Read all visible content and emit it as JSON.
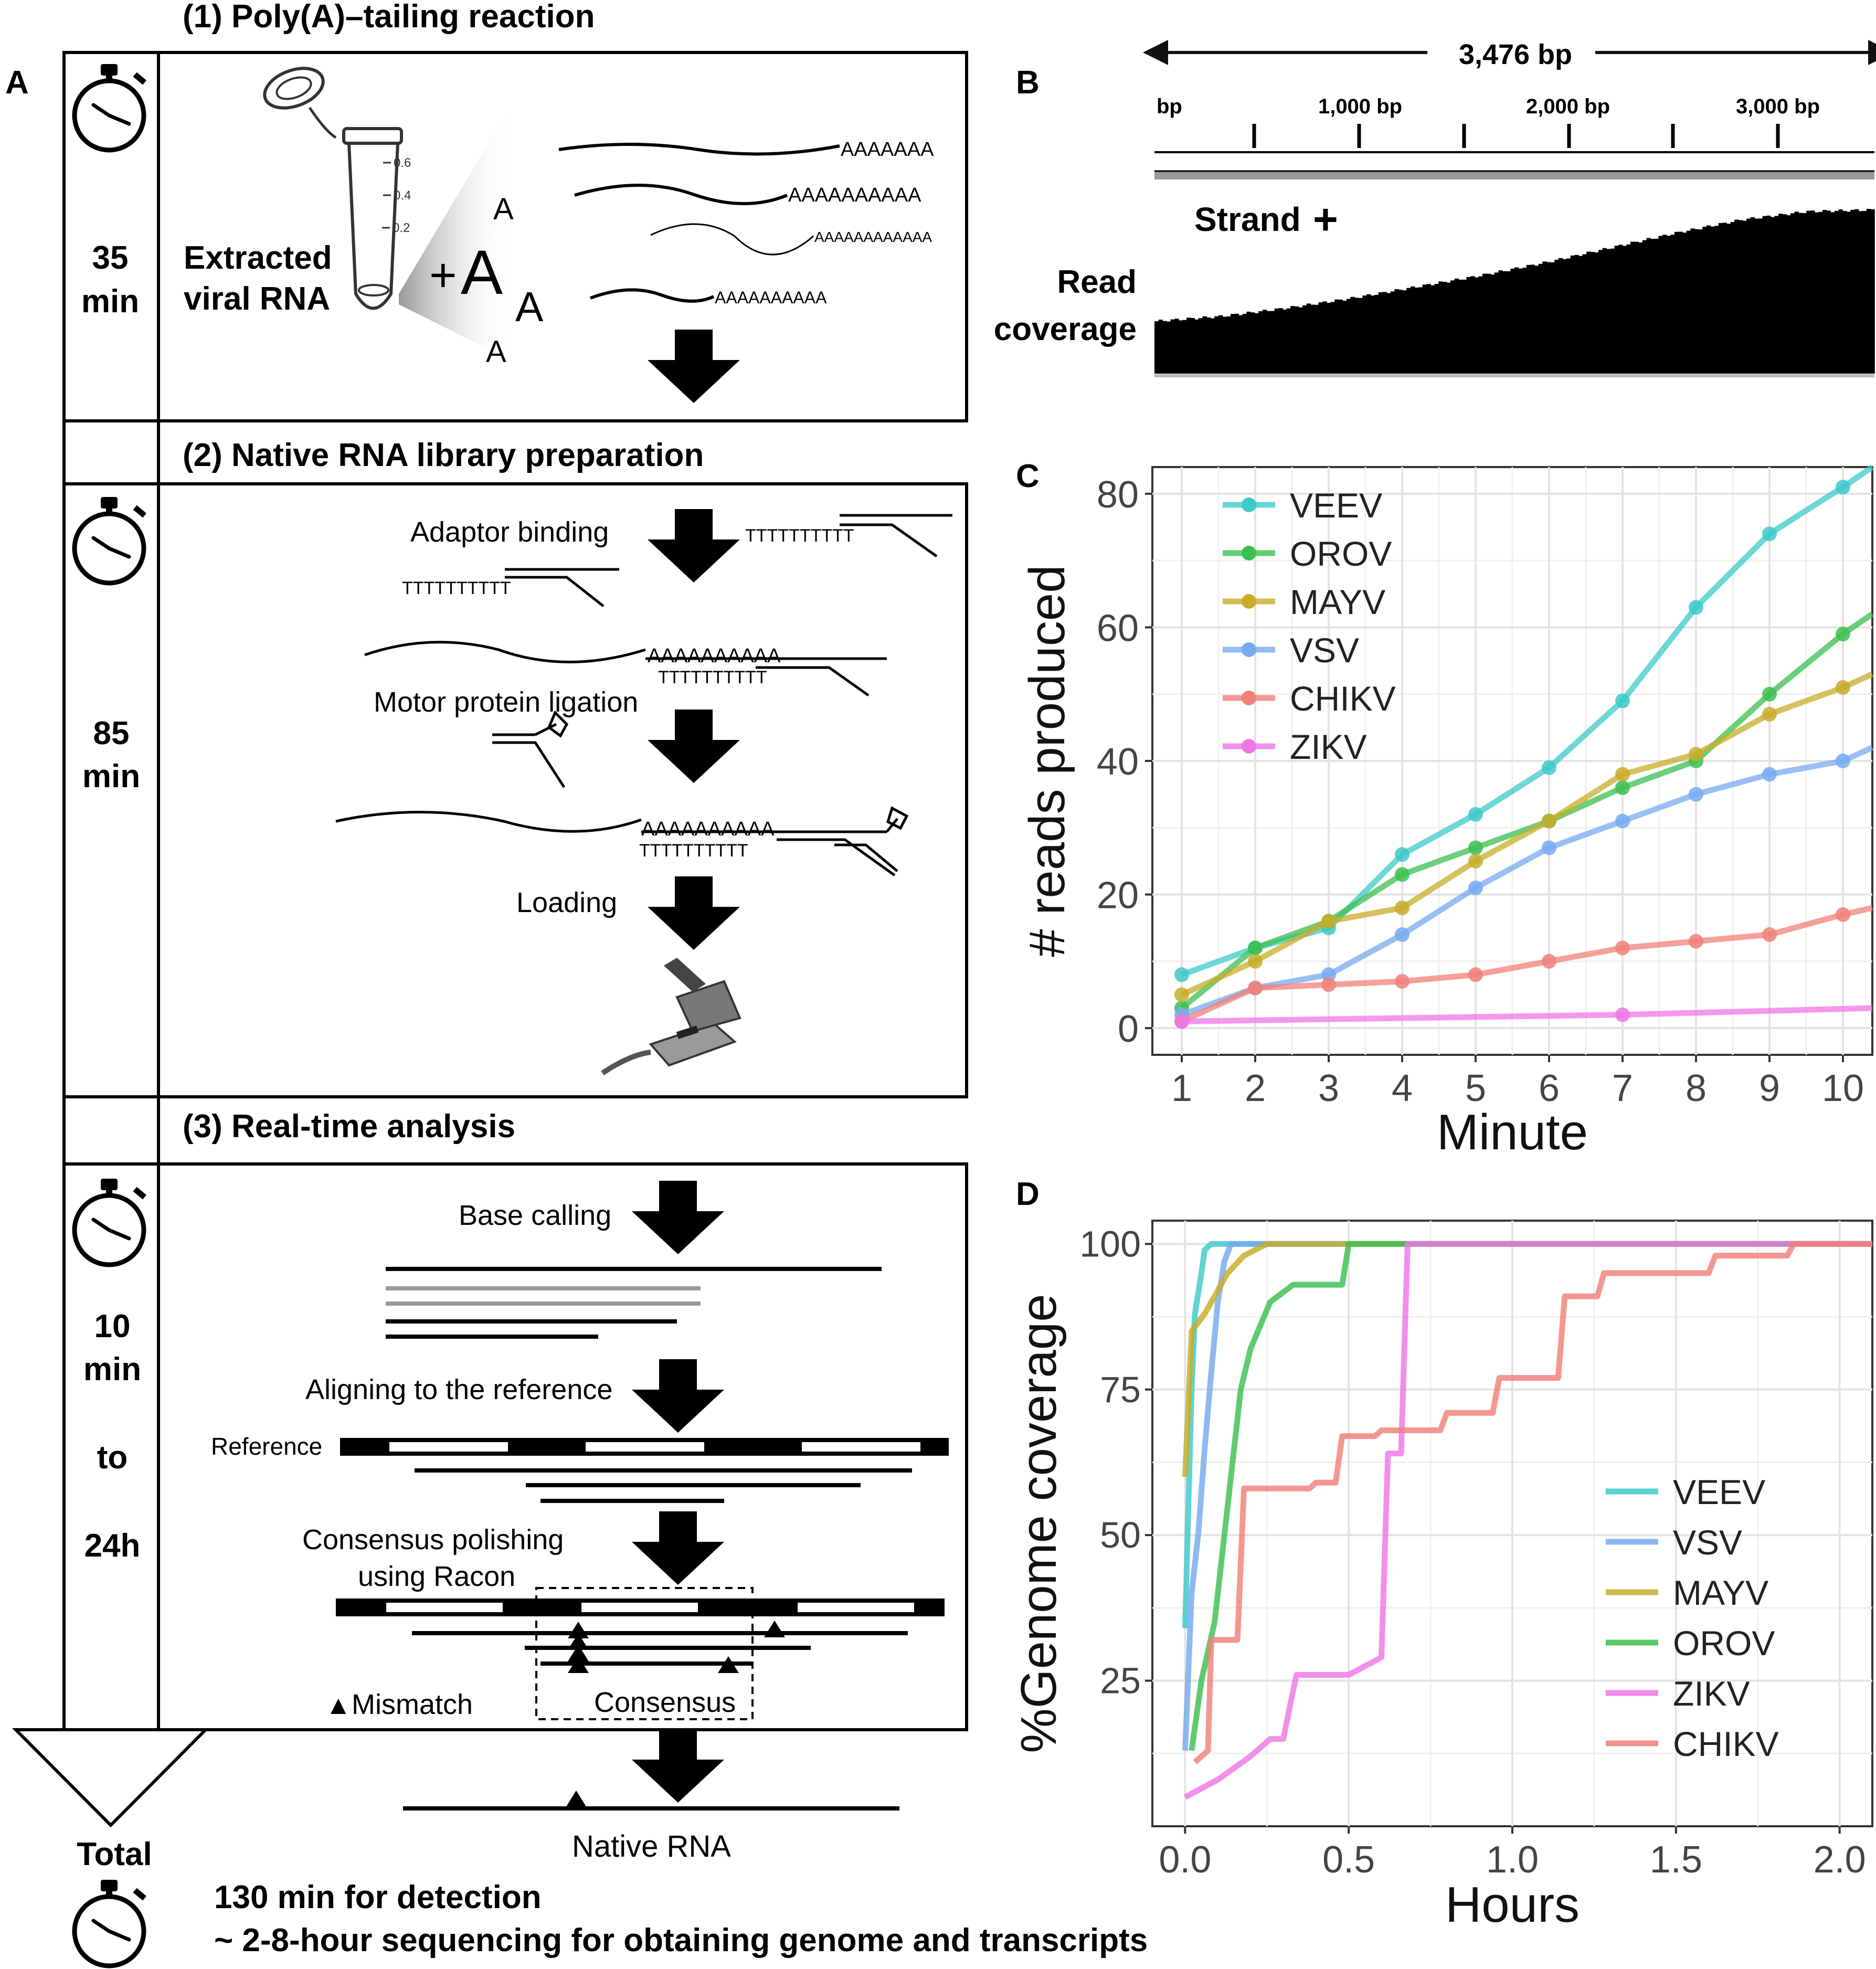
{
  "panel_a": {
    "label": "A",
    "step1": {
      "title": "(1) Poly(A)–tailing reaction",
      "time_value": "35",
      "time_unit": "min",
      "tube_label_line1": "Extracted",
      "tube_label_line2": "viral RNA",
      "plus": "+",
      "a_letter": "A",
      "tube_marks": [
        "0.6",
        "0.4",
        "0.2"
      ],
      "polya_tails": [
        "AAAAAAA",
        "AAAAAAAAAA",
        "AAAAAAAAAAAA",
        "AAAAAAAAAA"
      ]
    },
    "step2": {
      "title": "(2) Native RNA library preparation",
      "time_value": "85",
      "time_unit": "min",
      "adaptor_binding": "Adaptor binding",
      "motor_ligation": "Motor protein ligation",
      "loading": "Loading",
      "adaptor_t": "TTTTTTTTTT",
      "polya": "AAAAAAAAAA"
    },
    "step3": {
      "title": "(3) Real-time analysis",
      "time_value": "10",
      "time_unit": "min",
      "time_to": "to",
      "time_end": "24h",
      "base_calling": "Base calling",
      "aligning": "Aligning to the reference",
      "reference": "Reference",
      "polishing_line1": "Consensus polishing",
      "polishing_line2": "using Racon",
      "mismatch_marker": "▲",
      "mismatch": "Mismatch",
      "consensus": "Consensus",
      "native_rna": "Native RNA"
    },
    "total": {
      "label": "Total",
      "line1": "130 min for detection",
      "line2": "~ 2-8-hour sequencing for obtaining genome and transcripts"
    }
  },
  "panel_b": {
    "label": "B",
    "length": "3,476 bp",
    "ticks": [
      "bp",
      "1,000 bp",
      "2,000 bp",
      "3,000 bp"
    ],
    "strand": "Strand",
    "strand_sign": "+",
    "read_label_line1": "Read",
    "read_label_line2": "coverage",
    "coverage_profile": [
      0.32,
      0.35,
      0.4,
      0.46,
      0.53,
      0.6,
      0.68,
      0.77,
      0.86,
      0.94,
      0.99,
      1.0
    ]
  },
  "colors": {
    "VEEV": "#3ec9c9",
    "OROV": "#3cbf50",
    "MAYV": "#c7ad2a",
    "VSV": "#78aaf0",
    "CHIKV": "#f0807a",
    "ZIKV": "#ef76e6"
  },
  "chart_data": [
    {
      "type": "line",
      "panel": "C",
      "title": "",
      "xlabel": "Minute",
      "ylabel": "# reads produced",
      "x": [
        1,
        2,
        3,
        4,
        5,
        6,
        7,
        8,
        9,
        10
      ],
      "xlim": [
        0.6,
        10.4
      ],
      "ylim": [
        -4,
        84
      ],
      "xticks": [
        "1",
        "2",
        "3",
        "4",
        "5",
        "6",
        "7",
        "8",
        "9",
        "10"
      ],
      "yticks": [
        "0",
        "20",
        "40",
        "60",
        "80"
      ],
      "ytick_values": [
        0,
        20,
        40,
        60,
        80
      ],
      "legend_position": "top-left",
      "series": [
        {
          "name": "VEEV",
          "values": [
            8,
            12,
            15,
            26,
            32,
            39,
            49,
            63,
            74,
            81
          ],
          "extend_to": 84
        },
        {
          "name": "OROV",
          "values": [
            3,
            12,
            16,
            23,
            27,
            31,
            36,
            40,
            50,
            59
          ],
          "extend_to": 62
        },
        {
          "name": "MAYV",
          "values": [
            5,
            10,
            16,
            18,
            25,
            31,
            38,
            41,
            47,
            51
          ],
          "extend_to": 53
        },
        {
          "name": "VSV",
          "values": [
            2,
            6,
            8,
            14,
            21,
            27,
            31,
            35,
            38,
            40
          ],
          "extend_to": 42
        },
        {
          "name": "CHIKV",
          "values": [
            1,
            6,
            6.5,
            7,
            8,
            10,
            12,
            13,
            14,
            17
          ],
          "extend_to": 18
        },
        {
          "name": "ZIKV",
          "values": [
            1,
            null,
            null,
            null,
            null,
            null,
            2,
            null,
            null,
            null
          ],
          "extend_to": 3
        }
      ]
    },
    {
      "type": "line",
      "panel": "D",
      "title": "",
      "xlabel": "Hours",
      "ylabel": "%Genome coverage",
      "xlim": [
        -0.1,
        2.1
      ],
      "ylim": [
        0,
        104
      ],
      "xticks": [
        "0.0",
        "0.5",
        "1.0",
        "1.5",
        "2.0"
      ],
      "xtick_values": [
        0,
        0.5,
        1,
        1.5,
        2
      ],
      "yticks": [
        "25",
        "50",
        "75",
        "100"
      ],
      "ytick_values": [
        25,
        50,
        75,
        100
      ],
      "legend_position": "bottom-right",
      "series": [
        {
          "name": "VEEV",
          "points": [
            [
              0,
              34
            ],
            [
              0.01,
              55
            ],
            [
              0.02,
              75
            ],
            [
              0.03,
              88
            ],
            [
              0.05,
              95
            ],
            [
              0.06,
              99
            ],
            [
              0.08,
              100
            ],
            [
              2.1,
              100
            ]
          ]
        },
        {
          "name": "VSV",
          "points": [
            [
              0,
              13
            ],
            [
              0.02,
              40
            ],
            [
              0.04,
              50
            ],
            [
              0.06,
              65
            ],
            [
              0.08,
              78
            ],
            [
              0.1,
              90
            ],
            [
              0.12,
              97
            ],
            [
              0.14,
              100
            ],
            [
              2.1,
              100
            ]
          ]
        },
        {
          "name": "MAYV",
          "points": [
            [
              0,
              60
            ],
            [
              0.02,
              85
            ],
            [
              0.06,
              88
            ],
            [
              0.09,
              91
            ],
            [
              0.13,
              95
            ],
            [
              0.18,
              98
            ],
            [
              0.25,
              100
            ],
            [
              2.1,
              100
            ]
          ]
        },
        {
          "name": "OROV",
          "points": [
            [
              0.02,
              13
            ],
            [
              0.05,
              25
            ],
            [
              0.09,
              35
            ],
            [
              0.14,
              60
            ],
            [
              0.17,
              75
            ],
            [
              0.2,
              82
            ],
            [
              0.26,
              90
            ],
            [
              0.33,
              93
            ],
            [
              0.48,
              93
            ],
            [
              0.5,
              100
            ],
            [
              2.1,
              100
            ]
          ]
        },
        {
          "name": "ZIKV",
          "points": [
            [
              0,
              5
            ],
            [
              0.1,
              8
            ],
            [
              0.2,
              12
            ],
            [
              0.26,
              15
            ],
            [
              0.3,
              15
            ],
            [
              0.34,
              26
            ],
            [
              0.5,
              26
            ],
            [
              0.6,
              29
            ],
            [
              0.62,
              64
            ],
            [
              0.66,
              64
            ],
            [
              0.68,
              100
            ],
            [
              2.1,
              100
            ]
          ]
        },
        {
          "name": "CHIKV",
          "points": [
            [
              0.03,
              11
            ],
            [
              0.07,
              13
            ],
            [
              0.08,
              32
            ],
            [
              0.16,
              32
            ],
            [
              0.18,
              58
            ],
            [
              0.38,
              58
            ],
            [
              0.4,
              59
            ],
            [
              0.46,
              59
            ],
            [
              0.48,
              67
            ],
            [
              0.58,
              67
            ],
            [
              0.6,
              68
            ],
            [
              0.78,
              68
            ],
            [
              0.8,
              71
            ],
            [
              0.94,
              71
            ],
            [
              0.96,
              77
            ],
            [
              1.14,
              77
            ],
            [
              1.16,
              91
            ],
            [
              1.26,
              91
            ],
            [
              1.28,
              95
            ],
            [
              1.6,
              95
            ],
            [
              1.62,
              98
            ],
            [
              1.84,
              98
            ],
            [
              1.86,
              100
            ],
            [
              2.1,
              100
            ]
          ]
        }
      ]
    }
  ]
}
